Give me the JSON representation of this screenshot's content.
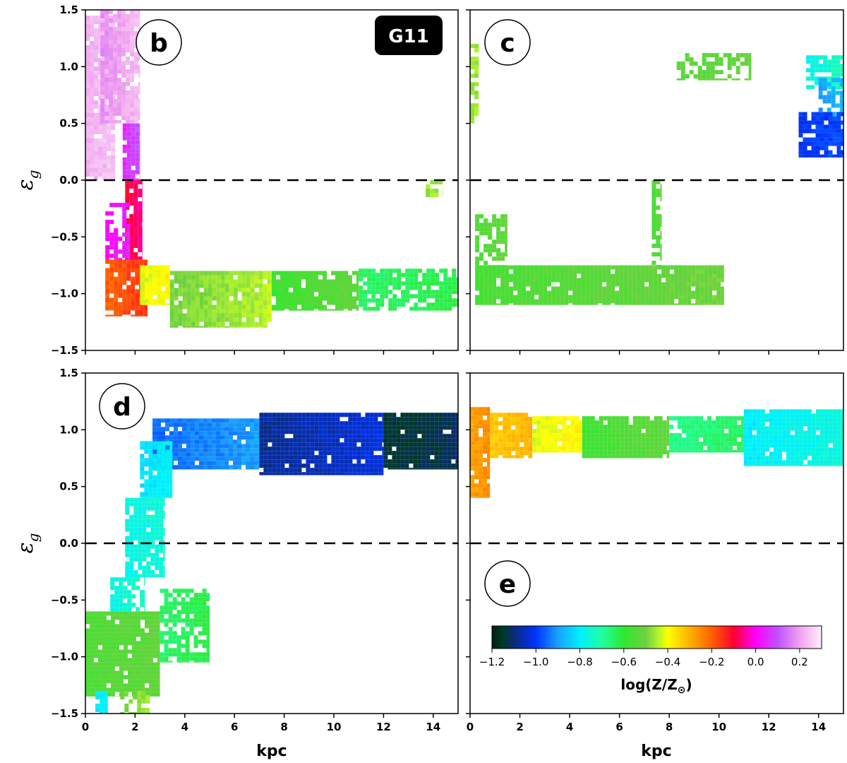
{
  "chart_data": {
    "type": "heatmap",
    "badge": "G11",
    "x_label": "kpc",
    "y_label": "ε",
    "y_label_sub": "g",
    "xlim": [
      0,
      15
    ],
    "ylim": [
      -1.5,
      1.5
    ],
    "x_ticks": [
      0,
      2,
      4,
      6,
      8,
      10,
      12,
      14
    ],
    "x_tick_labels": [
      "0",
      "2",
      "4",
      "6",
      "8",
      "10",
      "12",
      "14"
    ],
    "y_ticks": [
      1.5,
      1.0,
      0.5,
      0.0,
      -0.5,
      -1.0,
      -1.5
    ],
    "y_tick_labels": [
      "1.5",
      "1.0",
      "0.5",
      "0.0",
      "−0.5",
      "−1.0",
      "−1.5"
    ],
    "reference_line_y": 0.0,
    "colorbar": {
      "label": "log(Z/Z",
      "label_sym": "⊙",
      "label_end": ")",
      "range": [
        -1.2,
        0.3
      ],
      "ticks": [
        -1.2,
        -1.0,
        -0.8,
        -0.6,
        -0.4,
        -0.2,
        0.0,
        0.2
      ],
      "tick_labels": [
        "−1.2",
        "−1.0",
        "−0.8",
        "−0.6",
        "−0.4",
        "−0.2",
        "0.0",
        "0.2"
      ],
      "stops": [
        {
          "v": -1.2,
          "c": "#002010"
        },
        {
          "v": -1.15,
          "c": "#003a28"
        },
        {
          "v": -1.1,
          "c": "#0a2a7a"
        },
        {
          "v": -1.0,
          "c": "#0033ff"
        },
        {
          "v": -0.9,
          "c": "#1aa0ff"
        },
        {
          "v": -0.8,
          "c": "#00f0ff"
        },
        {
          "v": -0.7,
          "c": "#20ffa0"
        },
        {
          "v": -0.6,
          "c": "#30e830"
        },
        {
          "v": -0.5,
          "c": "#70d040"
        },
        {
          "v": -0.45,
          "c": "#a8f030"
        },
        {
          "v": -0.4,
          "c": "#ffff00"
        },
        {
          "v": -0.3,
          "c": "#ffb000"
        },
        {
          "v": -0.2,
          "c": "#ff6000"
        },
        {
          "v": -0.1,
          "c": "#ff0030"
        },
        {
          "v": 0.0,
          "c": "#ff00ff"
        },
        {
          "v": 0.1,
          "c": "#c050ff"
        },
        {
          "v": 0.2,
          "c": "#f0a0f0"
        },
        {
          "v": 0.3,
          "c": "#fff0fa"
        }
      ]
    },
    "panels": [
      {
        "id": "b",
        "letter": "b",
        "regions": [
          {
            "x": [
              0.0,
              1.2
            ],
            "y": [
              0.0,
              1.45
            ],
            "z": [
              0.22,
              0.25
            ],
            "density": 0.95
          },
          {
            "x": [
              0.6,
              2.2
            ],
            "y": [
              0.5,
              1.5
            ],
            "z": [
              0.18,
              0.24
            ],
            "density": 0.85
          },
          {
            "x": [
              1.5,
              2.2
            ],
            "y": [
              0.0,
              0.5
            ],
            "z": [
              0.05,
              0.12
            ],
            "density": 0.9
          },
          {
            "x": [
              1.6,
              2.3
            ],
            "y": [
              -0.7,
              0.0
            ],
            "z": [
              -0.1,
              -0.05
            ],
            "density": 0.9
          },
          {
            "x": [
              0.8,
              1.8
            ],
            "y": [
              -0.7,
              -0.2
            ],
            "z": [
              0.0,
              0.05
            ],
            "density": 0.55
          },
          {
            "x": [
              0.8,
              2.5
            ],
            "y": [
              -1.2,
              -0.7
            ],
            "z": [
              -0.2,
              -0.15
            ],
            "density": 0.9
          },
          {
            "x": [
              2.2,
              3.4
            ],
            "y": [
              -1.1,
              -0.75
            ],
            "z": [
              -0.42,
              -0.38
            ],
            "density": 0.95
          },
          {
            "x": [
              3.4,
              7.5
            ],
            "y": [
              -1.3,
              -0.8
            ],
            "z": [
              -0.5,
              -0.44
            ],
            "density": 0.95
          },
          {
            "x": [
              7.5,
              11.0
            ],
            "y": [
              -1.15,
              -0.8
            ],
            "z": [
              -0.58,
              -0.52
            ],
            "density": 0.9
          },
          {
            "x": [
              11.0,
              15.0
            ],
            "y": [
              -1.15,
              -0.78
            ],
            "z": [
              -0.65,
              -0.62
            ],
            "density": 0.8
          },
          {
            "x": [
              13.7,
              14.4
            ],
            "y": [
              -0.15,
              0.0
            ],
            "z": [
              -0.47,
              -0.45
            ],
            "density": 0.6
          }
        ]
      },
      {
        "id": "c",
        "letter": "c",
        "regions": [
          {
            "x": [
              0.0,
              0.35
            ],
            "y": [
              0.5,
              1.2
            ],
            "z": [
              -0.47,
              -0.45
            ],
            "density": 0.8
          },
          {
            "x": [
              8.3,
              11.3
            ],
            "y": [
              0.88,
              1.12
            ],
            "z": [
              -0.54,
              -0.52
            ],
            "density": 0.55
          },
          {
            "x": [
              13.5,
              15.0
            ],
            "y": [
              0.8,
              1.1
            ],
            "z": [
              -0.78,
              -0.72
            ],
            "density": 0.8
          },
          {
            "x": [
              14.0,
              15.0
            ],
            "y": [
              0.55,
              0.9
            ],
            "z": [
              -0.9,
              -0.85
            ],
            "density": 0.7
          },
          {
            "x": [
              13.2,
              15.0
            ],
            "y": [
              0.2,
              0.6
            ],
            "z": [
              -1.0,
              -0.98
            ],
            "density": 0.85
          },
          {
            "x": [
              0.2,
              10.2
            ],
            "y": [
              -1.1,
              -0.75
            ],
            "z": [
              -0.56,
              -0.5
            ],
            "density": 0.95
          },
          {
            "x": [
              0.2,
              1.5
            ],
            "y": [
              -0.75,
              -0.3
            ],
            "z": [
              -0.55,
              -0.52
            ],
            "density": 0.55
          },
          {
            "x": [
              7.3,
              7.7
            ],
            "y": [
              -0.75,
              0.0
            ],
            "z": [
              -0.55,
              -0.52
            ],
            "density": 0.75
          }
        ]
      },
      {
        "id": "d",
        "letter": "d",
        "regions": [
          {
            "x": [
              2.7,
              7.0
            ],
            "y": [
              0.65,
              1.1
            ],
            "z": [
              -0.95,
              -0.9
            ],
            "density": 0.95
          },
          {
            "x": [
              7.0,
              12.0
            ],
            "y": [
              0.6,
              1.15
            ],
            "z": [
              -1.08,
              -1.02
            ],
            "density": 0.95
          },
          {
            "x": [
              12.0,
              15.0
            ],
            "y": [
              0.65,
              1.15
            ],
            "z": [
              -1.15,
              -1.12
            ],
            "density": 0.95
          },
          {
            "x": [
              2.2,
              3.5
            ],
            "y": [
              0.4,
              0.9
            ],
            "z": [
              -0.82,
              -0.78
            ],
            "density": 0.9
          },
          {
            "x": [
              1.6,
              3.2
            ],
            "y": [
              -0.3,
              0.4
            ],
            "z": [
              -0.78,
              -0.75
            ],
            "density": 0.9
          },
          {
            "x": [
              1.0,
              2.4
            ],
            "y": [
              -0.6,
              -0.3
            ],
            "z": [
              -0.77,
              -0.73
            ],
            "density": 0.7
          },
          {
            "x": [
              0.0,
              3.0
            ],
            "y": [
              -1.35,
              -0.6
            ],
            "z": [
              -0.55,
              -0.52
            ],
            "density": 0.95
          },
          {
            "x": [
              3.0,
              5.0
            ],
            "y": [
              -1.05,
              -0.4
            ],
            "z": [
              -0.65,
              -0.62
            ],
            "density": 0.8
          },
          {
            "x": [
              0.4,
              0.9
            ],
            "y": [
              -1.5,
              -1.3
            ],
            "z": [
              -0.8,
              -0.78
            ],
            "density": 0.9
          },
          {
            "x": [
              1.4,
              2.6
            ],
            "y": [
              -1.5,
              -1.3
            ],
            "z": [
              -0.5,
              -0.46
            ],
            "density": 0.6
          }
        ]
      },
      {
        "id": "e",
        "letter": "e",
        "regions": [
          {
            "x": [
              0.0,
              0.8
            ],
            "y": [
              0.4,
              1.2
            ],
            "z": [
              -0.28,
              -0.25
            ],
            "density": 0.95
          },
          {
            "x": [
              0.8,
              2.5
            ],
            "y": [
              0.75,
              1.15
            ],
            "z": [
              -0.33,
              -0.3
            ],
            "density": 0.95
          },
          {
            "x": [
              2.5,
              4.5
            ],
            "y": [
              0.8,
              1.12
            ],
            "z": [
              -0.42,
              -0.38
            ],
            "density": 0.95
          },
          {
            "x": [
              4.5,
              8.0
            ],
            "y": [
              0.75,
              1.12
            ],
            "z": [
              -0.58,
              -0.52
            ],
            "density": 0.95
          },
          {
            "x": [
              8.0,
              11.0
            ],
            "y": [
              0.8,
              1.12
            ],
            "z": [
              -0.68,
              -0.64
            ],
            "density": 0.95
          },
          {
            "x": [
              11.0,
              15.0
            ],
            "y": [
              0.68,
              1.18
            ],
            "z": [
              -0.8,
              -0.76
            ],
            "density": 0.95
          }
        ]
      }
    ]
  }
}
